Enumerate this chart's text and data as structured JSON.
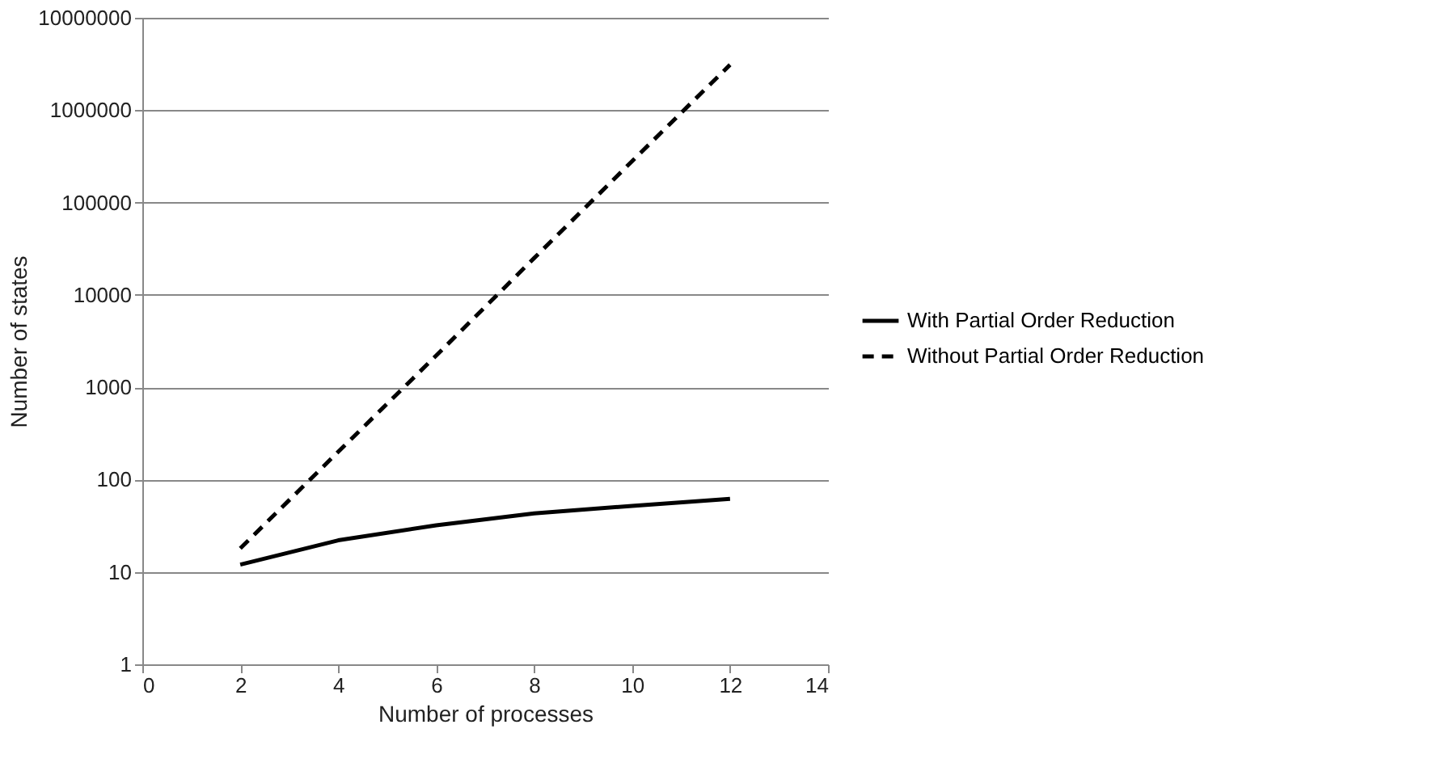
{
  "chart_data": {
    "type": "line",
    "xlabel": "Number of processes",
    "ylabel": "Number of states",
    "log": "y",
    "grid": "y",
    "legend": "right",
    "marker": "none",
    "x": [
      2,
      4,
      6,
      8,
      10,
      12
    ],
    "xlim": [
      0,
      14
    ],
    "xticks": [
      0,
      2,
      4,
      6,
      8,
      10,
      12,
      14
    ],
    "ylim": [
      1,
      10000000
    ],
    "yticks": [
      1,
      10,
      100,
      1000,
      10000,
      100000,
      1000000,
      10000000
    ],
    "series": [
      {
        "name": "With Partial Order Reduction",
        "color": "#000000",
        "line_style": "solid",
        "values": [
          12,
          22,
          32,
          43,
          52,
          62
        ]
      },
      {
        "name": "Without Partial Order Reduction",
        "color": "#000000",
        "line_style": "dashed",
        "values": [
          18,
          200,
          2200,
          25000,
          280000,
          3100000
        ]
      }
    ]
  }
}
